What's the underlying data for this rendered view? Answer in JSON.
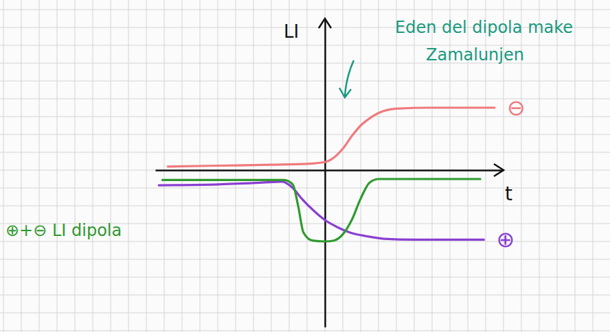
{
  "chart_data": {
    "type": "line",
    "x_label": "t",
    "y_label": "LI",
    "annotations": [
      "Eden del dipola make Zamalunjen"
    ],
    "xlim": [
      -9.5,
      10
    ],
    "ylim": [
      -8.8,
      8.5
    ],
    "xticks": [],
    "yticks": [],
    "tick_labels": false,
    "series": [
      {
        "name": "⊖",
        "color": "#f07a7c",
        "x": [
          -8.8,
          -6,
          -3,
          -1,
          0,
          0.5,
          1,
          1.5,
          2,
          2.5,
          3,
          4,
          6,
          8,
          9.5
        ],
        "values": [
          0.2,
          0.25,
          0.3,
          0.35,
          0.45,
          0.7,
          1.2,
          1.9,
          2.5,
          2.9,
          3.2,
          3.45,
          3.5,
          3.5,
          3.5
        ]
      },
      {
        "name": "⊕",
        "color": "#8a3fd1",
        "x": [
          -9.3,
          -6,
          -3.5,
          -2.4,
          -1.8,
          -1.3,
          -0.6,
          0,
          0.7,
          1.4,
          2.3,
          3.3,
          5,
          7,
          8.9
        ],
        "values": [
          -0.85,
          -0.8,
          -0.7,
          -0.65,
          -1.0,
          -1.6,
          -2.3,
          -2.8,
          -3.2,
          -3.5,
          -3.7,
          -3.85,
          -3.9,
          -3.9,
          -3.9
        ]
      },
      {
        "name": "⊕+⊖ LI dipola",
        "color": "#2e9a2e",
        "x": [
          -9.1,
          -5,
          -2.3,
          -1.8,
          -1.5,
          -1.2,
          -0.7,
          0,
          0.5,
          1,
          1.5,
          2,
          2.5,
          3,
          6,
          8.7
        ],
        "values": [
          -0.55,
          -0.55,
          -0.55,
          -0.8,
          -2,
          -3.5,
          -3.95,
          -4,
          -3.95,
          -3.6,
          -2.8,
          -1.6,
          -0.7,
          -0.5,
          -0.5,
          -0.5
        ]
      }
    ]
  }
}
